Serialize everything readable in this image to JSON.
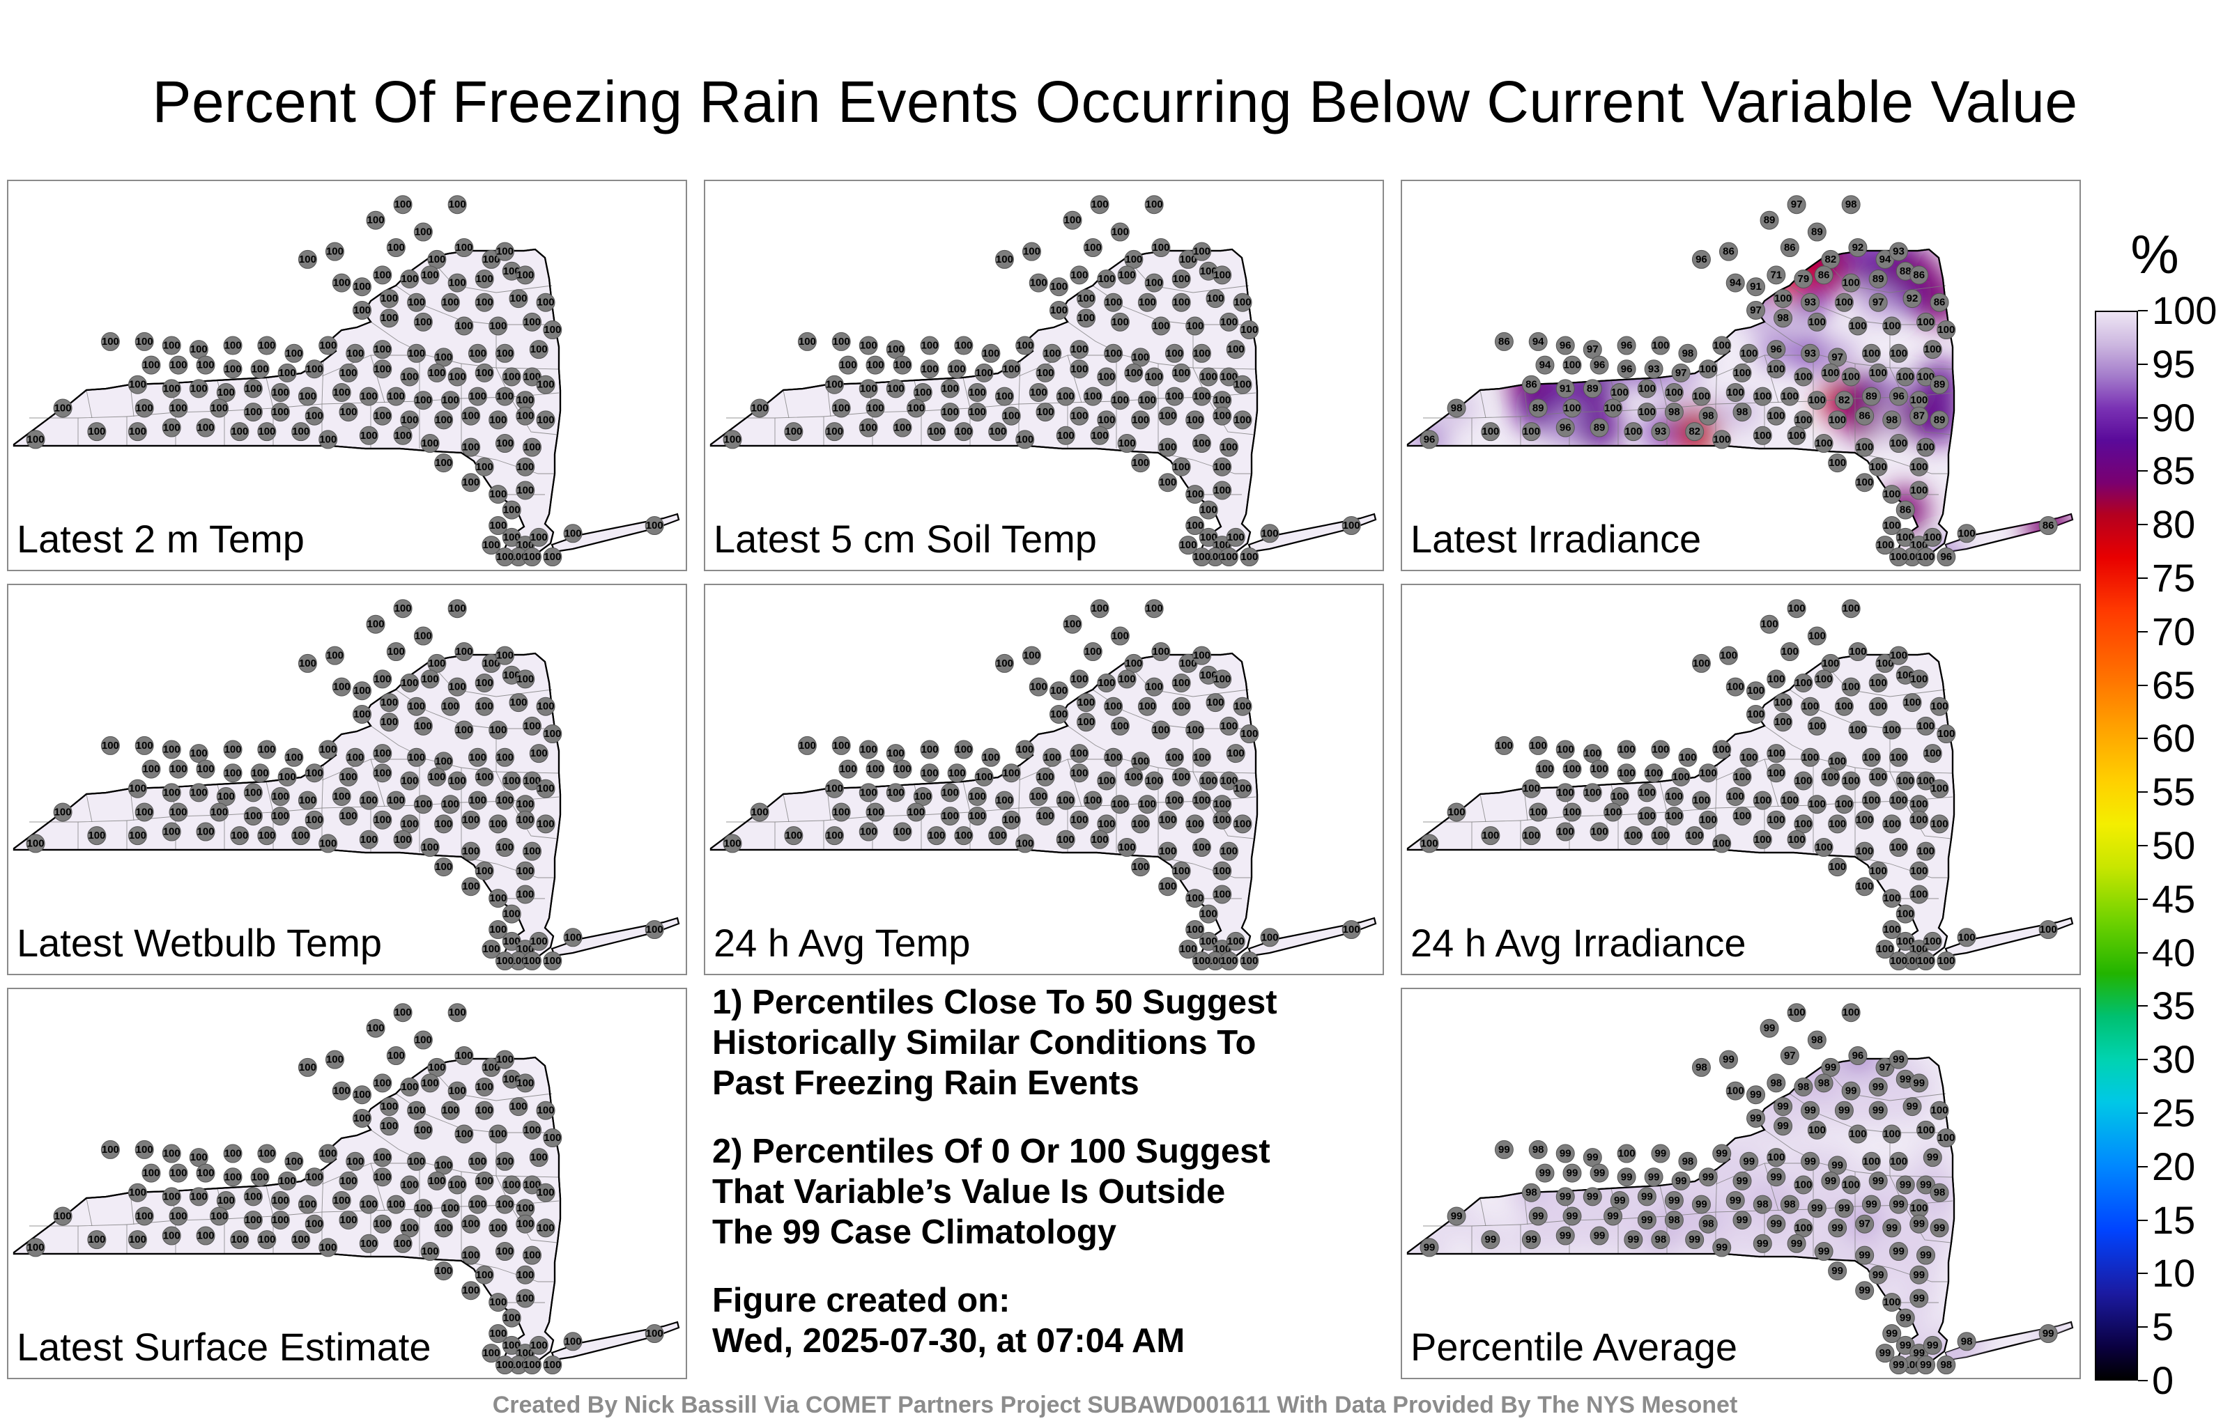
{
  "figure": {
    "title": "Percent Of Freezing Rain Events Occurring Below Current Variable Value",
    "credit": "Created By Nick Bassill Via COMET Partners Project SUBAWD001611 With Data Provided By The NYS Mesonet"
  },
  "colorbar": {
    "unit": "%",
    "ticks": [
      "100",
      "95",
      "90",
      "85",
      "80",
      "75",
      "70",
      "65",
      "60",
      "55",
      "50",
      "45",
      "40",
      "35",
      "30",
      "25",
      "20",
      "15",
      "10",
      "5",
      "0"
    ],
    "range": [
      0,
      100
    ]
  },
  "notes": {
    "note1": [
      "1) Percentiles Close To 50 Suggest",
      "Historically Similar Conditions To",
      "Past Freezing Rain Events"
    ],
    "note2": [
      "2) Percentiles Of 0 Or 100 Suggest",
      "That Variable’s Value Is Outside",
      "The 99 Case Climatology"
    ],
    "created_label": "Figure created on:",
    "created_value": "Wed, 2025-07-30, at 07:04 AM"
  },
  "chart_data": [
    {
      "type": "heatmap",
      "title": "Latest 2 m Temp",
      "region": "New York State",
      "values": [
        100,
        100,
        100,
        100,
        100,
        100,
        100,
        100,
        100,
        100,
        100,
        100,
        100,
        100,
        100,
        100,
        100,
        100,
        100,
        100,
        100,
        100,
        100,
        100,
        100,
        100,
        100,
        100,
        100,
        100,
        100,
        100,
        100,
        100,
        100,
        100,
        100,
        100,
        100,
        100,
        100,
        100,
        100,
        100,
        100,
        100,
        100,
        100,
        100,
        100,
        100,
        100,
        100,
        100,
        100,
        100,
        100,
        100,
        100,
        100,
        100,
        100,
        100,
        100,
        100,
        100,
        100,
        100,
        100,
        100,
        100,
        100,
        100,
        100,
        100,
        100,
        100,
        100,
        100,
        100,
        100,
        100,
        100,
        100,
        100,
        100,
        100,
        100,
        100,
        100,
        100,
        100,
        100,
        100,
        100,
        100,
        100,
        100,
        100,
        100,
        100,
        100,
        100,
        100,
        100,
        100,
        100,
        100,
        100,
        100,
        100,
        100,
        100,
        100,
        100,
        100,
        100,
        100,
        100,
        100,
        100,
        100,
        100,
        100,
        100,
        100,
        100
      ]
    },
    {
      "type": "heatmap",
      "title": "Latest 5 cm Soil Temp",
      "region": "New York State",
      "values": [
        100,
        100,
        100,
        100,
        100,
        100,
        100,
        100,
        100,
        100,
        100,
        100,
        100,
        100,
        100,
        100,
        100,
        100,
        100,
        100,
        100,
        100,
        100,
        100,
        100,
        100,
        100,
        100,
        100,
        100,
        100,
        100,
        100,
        100,
        100,
        100,
        100,
        100,
        100,
        100,
        100,
        100,
        100,
        100,
        100,
        100,
        100,
        100,
        100,
        100,
        100,
        100,
        100,
        100,
        100,
        100,
        100,
        100,
        100,
        100,
        100,
        100,
        100,
        100,
        100,
        100,
        100,
        100,
        100,
        100,
        100,
        100,
        100,
        100,
        100,
        100,
        100,
        100,
        100,
        100,
        100,
        100,
        100,
        100,
        100,
        100,
        100,
        100,
        100,
        100,
        100,
        100,
        100,
        100,
        100,
        100,
        100,
        100,
        100,
        100,
        100,
        100,
        100,
        100,
        100,
        100,
        100,
        100,
        100,
        100,
        100,
        100,
        100,
        100,
        100,
        100,
        100,
        100,
        100,
        100,
        100,
        100,
        100,
        100,
        100,
        100,
        100
      ]
    },
    {
      "type": "heatmap",
      "title": "Latest Irradiance",
      "region": "New York State",
      "values": [
        97,
        98,
        89,
        86,
        96,
        89,
        86,
        82,
        92,
        94,
        93,
        86,
        71,
        79,
        100,
        89,
        88,
        86,
        91,
        94,
        100,
        93,
        100,
        97,
        92,
        86,
        97,
        98,
        100,
        100,
        100,
        100,
        100,
        86,
        94,
        96,
        97,
        96,
        100,
        98,
        100,
        100,
        96,
        93,
        97,
        100,
        100,
        100,
        94,
        100,
        96,
        96,
        93,
        97,
        100,
        100,
        100,
        100,
        100,
        100,
        100,
        100,
        100,
        89,
        86,
        91,
        89,
        100,
        100,
        100,
        100,
        100,
        100,
        100,
        100,
        82,
        89,
        96,
        100,
        98,
        89,
        100,
        100,
        100,
        98,
        98,
        98,
        100,
        100,
        100,
        86,
        98,
        87,
        89,
        96,
        100,
        100,
        96,
        89,
        100,
        93,
        82,
        100,
        100,
        100,
        100,
        100,
        100,
        100,
        100,
        100,
        100,
        100,
        100,
        100,
        86,
        100,
        100,
        100,
        100,
        100,
        100,
        100,
        100,
        96,
        100,
        86
      ]
    },
    {
      "type": "heatmap",
      "title": "Latest Wetbulb Temp",
      "region": "New York State",
      "values": [
        100,
        100,
        100,
        100,
        100,
        100,
        100,
        100,
        100,
        100,
        100,
        100,
        100,
        100,
        100,
        100,
        100,
        100,
        100,
        100,
        100,
        100,
        100,
        100,
        100,
        100,
        100,
        100,
        100,
        100,
        100,
        100,
        100,
        100,
        100,
        100,
        100,
        100,
        100,
        100,
        100,
        100,
        100,
        100,
        100,
        100,
        100,
        100,
        100,
        100,
        100,
        100,
        100,
        100,
        100,
        100,
        100,
        100,
        100,
        100,
        100,
        100,
        100,
        100,
        100,
        100,
        100,
        100,
        100,
        100,
        100,
        100,
        100,
        100,
        100,
        100,
        100,
        100,
        100,
        100,
        100,
        100,
        100,
        100,
        100,
        100,
        100,
        100,
        100,
        100,
        100,
        100,
        100,
        100,
        100,
        100,
        100,
        100,
        100,
        100,
        100,
        100,
        100,
        100,
        100,
        100,
        100,
        100,
        100,
        100,
        100,
        100,
        100,
        100,
        100,
        100,
        100,
        100,
        100,
        100,
        100,
        100,
        100,
        100,
        100,
        100,
        100
      ]
    },
    {
      "type": "heatmap",
      "title": "24 h Avg Temp",
      "region": "New York State",
      "values": [
        100,
        100,
        100,
        100,
        100,
        100,
        100,
        100,
        100,
        100,
        100,
        100,
        100,
        100,
        100,
        100,
        100,
        100,
        100,
        100,
        100,
        100,
        100,
        100,
        100,
        100,
        100,
        100,
        100,
        100,
        100,
        100,
        100,
        100,
        100,
        100,
        100,
        100,
        100,
        100,
        100,
        100,
        100,
        100,
        100,
        100,
        100,
        100,
        100,
        100,
        100,
        100,
        100,
        100,
        100,
        100,
        100,
        100,
        100,
        100,
        100,
        100,
        100,
        100,
        100,
        100,
        100,
        100,
        100,
        100,
        100,
        100,
        100,
        100,
        100,
        100,
        100,
        100,
        100,
        100,
        100,
        100,
        100,
        100,
        100,
        100,
        100,
        100,
        100,
        100,
        100,
        100,
        100,
        100,
        100,
        100,
        100,
        100,
        100,
        100,
        100,
        100,
        100,
        100,
        100,
        100,
        100,
        100,
        100,
        100,
        100,
        100,
        100,
        100,
        100,
        100,
        100,
        100,
        100,
        100,
        100,
        100,
        100,
        100,
        100,
        100,
        100
      ]
    },
    {
      "type": "heatmap",
      "title": "24 h Avg Irradiance",
      "region": "New York State",
      "values": [
        100,
        100,
        100,
        100,
        100,
        100,
        100,
        100,
        100,
        100,
        100,
        100,
        100,
        100,
        100,
        100,
        100,
        100,
        100,
        100,
        100,
        100,
        100,
        100,
        100,
        100,
        100,
        100,
        100,
        100,
        100,
        100,
        100,
        100,
        100,
        100,
        100,
        100,
        100,
        100,
        100,
        100,
        100,
        100,
        100,
        100,
        100,
        100,
        100,
        100,
        100,
        100,
        100,
        100,
        100,
        100,
        100,
        100,
        100,
        100,
        100,
        100,
        100,
        100,
        100,
        100,
        100,
        100,
        100,
        100,
        100,
        100,
        100,
        100,
        100,
        100,
        100,
        100,
        100,
        100,
        100,
        100,
        100,
        100,
        100,
        100,
        100,
        100,
        100,
        100,
        100,
        100,
        100,
        100,
        100,
        100,
        100,
        100,
        100,
        100,
        100,
        100,
        100,
        100,
        100,
        100,
        100,
        100,
        100,
        100,
        100,
        100,
        100,
        100,
        100,
        100,
        100,
        100,
        100,
        100,
        100,
        100,
        100,
        100,
        100,
        100,
        100
      ]
    },
    {
      "type": "heatmap",
      "title": "Latest Surface Estimate",
      "region": "New York State",
      "values": [
        100,
        100,
        100,
        100,
        100,
        100,
        100,
        100,
        100,
        100,
        100,
        100,
        100,
        100,
        100,
        100,
        100,
        100,
        100,
        100,
        100,
        100,
        100,
        100,
        100,
        100,
        100,
        100,
        100,
        100,
        100,
        100,
        100,
        100,
        100,
        100,
        100,
        100,
        100,
        100,
        100,
        100,
        100,
        100,
        100,
        100,
        100,
        100,
        100,
        100,
        100,
        100,
        100,
        100,
        100,
        100,
        100,
        100,
        100,
        100,
        100,
        100,
        100,
        100,
        100,
        100,
        100,
        100,
        100,
        100,
        100,
        100,
        100,
        100,
        100,
        100,
        100,
        100,
        100,
        100,
        100,
        100,
        100,
        100,
        100,
        100,
        100,
        100,
        100,
        100,
        100,
        100,
        100,
        100,
        100,
        100,
        100,
        100,
        100,
        100,
        100,
        100,
        100,
        100,
        100,
        100,
        100,
        100,
        100,
        100,
        100,
        100,
        100,
        100,
        100,
        100,
        100,
        100,
        100,
        100,
        100,
        100,
        100,
        100,
        100,
        100,
        100
      ]
    },
    {
      "type": "heatmap",
      "title": "Percentile Average",
      "region": "New York State",
      "values": [
        100,
        100,
        99,
        99,
        98,
        98,
        97,
        99,
        96,
        97,
        99,
        98,
        98,
        98,
        99,
        99,
        99,
        99,
        99,
        100,
        99,
        99,
        99,
        99,
        99,
        100,
        99,
        99,
        100,
        100,
        100,
        100,
        100,
        99,
        98,
        99,
        99,
        100,
        99,
        98,
        99,
        99,
        100,
        99,
        99,
        100,
        100,
        99,
        99,
        99,
        99,
        99,
        99,
        99,
        99,
        99,
        99,
        100,
        99,
        100,
        99,
        99,
        99,
        98,
        98,
        99,
        99,
        99,
        99,
        99,
        99,
        99,
        98,
        98,
        99,
        99,
        99,
        99,
        100,
        99,
        99,
        99,
        99,
        99,
        98,
        98,
        99,
        99,
        100,
        99,
        97,
        99,
        99,
        99,
        99,
        99,
        99,
        99,
        99,
        99,
        98,
        99,
        99,
        99,
        99,
        99,
        99,
        99,
        99,
        99,
        99,
        99,
        99,
        100,
        99,
        99,
        99,
        99,
        99,
        99,
        99,
        100,
        99,
        99,
        98,
        98,
        99
      ]
    }
  ]
}
